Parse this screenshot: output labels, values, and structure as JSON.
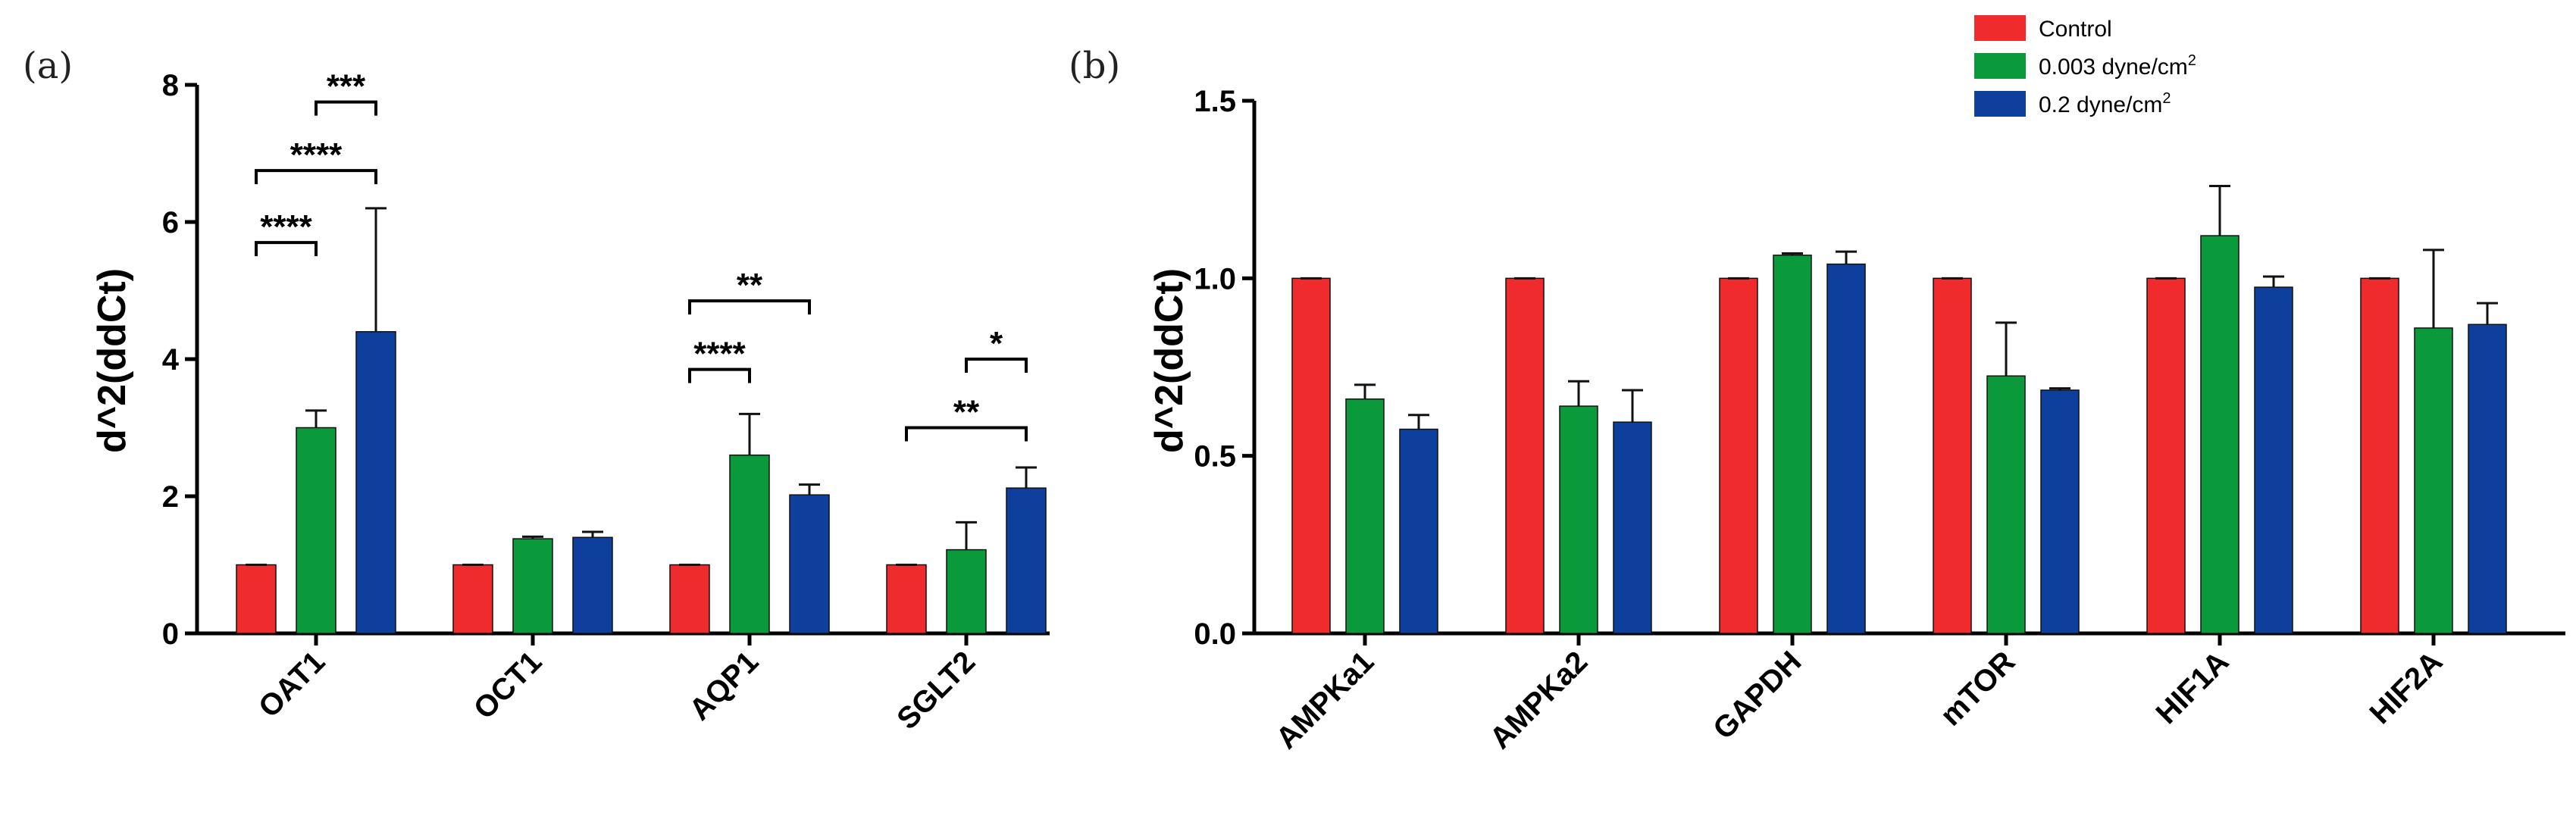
{
  "colors": {
    "Control": "#ef2b2d",
    "low": "#0a9a3c",
    "high": "#0e3f9c"
  },
  "legend": {
    "entries": [
      {
        "label": "Control",
        "color": "#ef2b2d"
      },
      {
        "label": "0.003 dyne/cm",
        "sup": "2",
        "color": "#0a9a3c"
      },
      {
        "label": "0.2 dyne/cm",
        "sup": "2",
        "color": "#0e3f9c"
      }
    ]
  },
  "chart_data": [
    {
      "panel": "(a)",
      "type": "bar",
      "title": "",
      "xlabel": "",
      "ylabel": "d^2(ddCt)",
      "ylim": [
        0,
        8
      ],
      "yticks": [
        0,
        2,
        4,
        6,
        8
      ],
      "categories": [
        "OAT1",
        "OCT1",
        "AQP1",
        "SGLT2"
      ],
      "series": [
        {
          "name": "Control",
          "values": [
            1,
            1,
            1,
            1
          ],
          "errors": [
            0,
            0,
            0,
            0
          ]
        },
        {
          "name": "0.003 dyne/cm2",
          "values": [
            3.0,
            1.38,
            2.6,
            1.22
          ],
          "errors": [
            0.25,
            0.03,
            0.6,
            0.4
          ]
        },
        {
          "name": "0.2 dyne/cm2",
          "values": [
            4.4,
            1.4,
            2.02,
            2.12
          ],
          "errors": [
            1.8,
            0.08,
            0.15,
            0.3
          ]
        }
      ],
      "significance": [
        {
          "category": 0,
          "from": 0,
          "to": 1,
          "level": 5.7,
          "label": "****"
        },
        {
          "category": 0,
          "from": 0,
          "to": 2,
          "level": 6.75,
          "label": "****"
        },
        {
          "category": 0,
          "from": 1,
          "to": 2,
          "level": 7.75,
          "label": "***"
        },
        {
          "category": 2,
          "from": 0,
          "to": 1,
          "level": 3.85,
          "label": "****"
        },
        {
          "category": 2,
          "from": 0,
          "to": 2,
          "level": 4.85,
          "label": "**"
        },
        {
          "category": 3,
          "from": 0,
          "to": 2,
          "level": 3.0,
          "label": "**"
        },
        {
          "category": 3,
          "from": 1,
          "to": 2,
          "level": 4.0,
          "label": "*"
        }
      ]
    },
    {
      "panel": "(b)",
      "type": "bar",
      "title": "",
      "xlabel": "",
      "ylabel": "d^2(ddCt)",
      "ylim": [
        0,
        1.5
      ],
      "yticks": [
        "0.0",
        "0.5",
        "1.0",
        "1.5"
      ],
      "categories": [
        "AMPKa1",
        "AMPKa2",
        "GAPDH",
        "mTOR",
        "HIF1A",
        "HIF2A"
      ],
      "series": [
        {
          "name": "Control",
          "values": [
            1,
            1,
            1,
            1,
            1,
            1
          ],
          "errors": [
            0,
            0,
            0,
            0,
            0,
            0
          ]
        },
        {
          "name": "0.003 dyne/cm2",
          "values": [
            0.66,
            0.64,
            1.065,
            0.725,
            1.12,
            0.86
          ],
          "errors": [
            0.04,
            0.07,
            0.005,
            0.15,
            0.14,
            0.22
          ]
        },
        {
          "name": "0.2 dyne/cm2",
          "values": [
            0.575,
            0.595,
            1.04,
            0.685,
            0.975,
            0.87
          ],
          "errors": [
            0.04,
            0.09,
            0.035,
            0.005,
            0.03,
            0.06
          ]
        }
      ],
      "significance": []
    }
  ]
}
